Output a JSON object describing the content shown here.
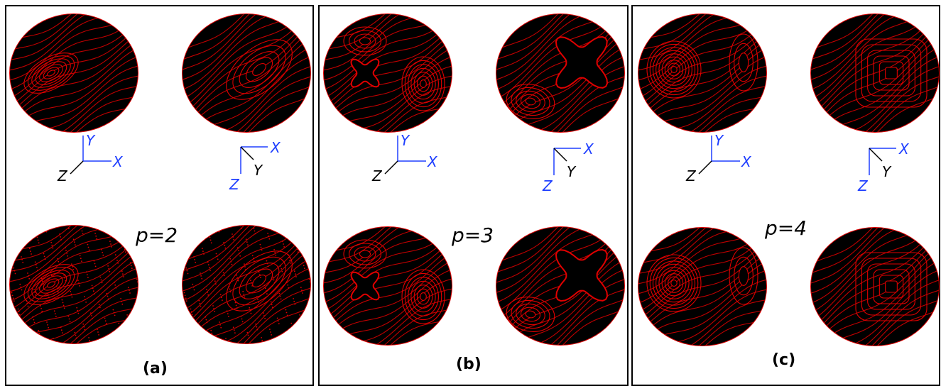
{
  "panels": [
    {
      "id": "a",
      "caption": "(a)",
      "param": "p=2",
      "variant": 2
    },
    {
      "id": "b",
      "caption": "(b)",
      "param": "p=3",
      "variant": 3
    },
    {
      "id": "c",
      "caption": "(c)",
      "param": "p=4",
      "variant": 4
    }
  ],
  "axes": {
    "front": {
      "x": "X",
      "y": "Y",
      "z": "Z"
    },
    "top": {
      "x": "X",
      "y": "Y",
      "z": "Z"
    }
  },
  "colors": {
    "orbit": "#e00000",
    "sphere_bg": "#000000",
    "axis_blue": "#1f3fff",
    "axis_black": "#000000"
  }
}
